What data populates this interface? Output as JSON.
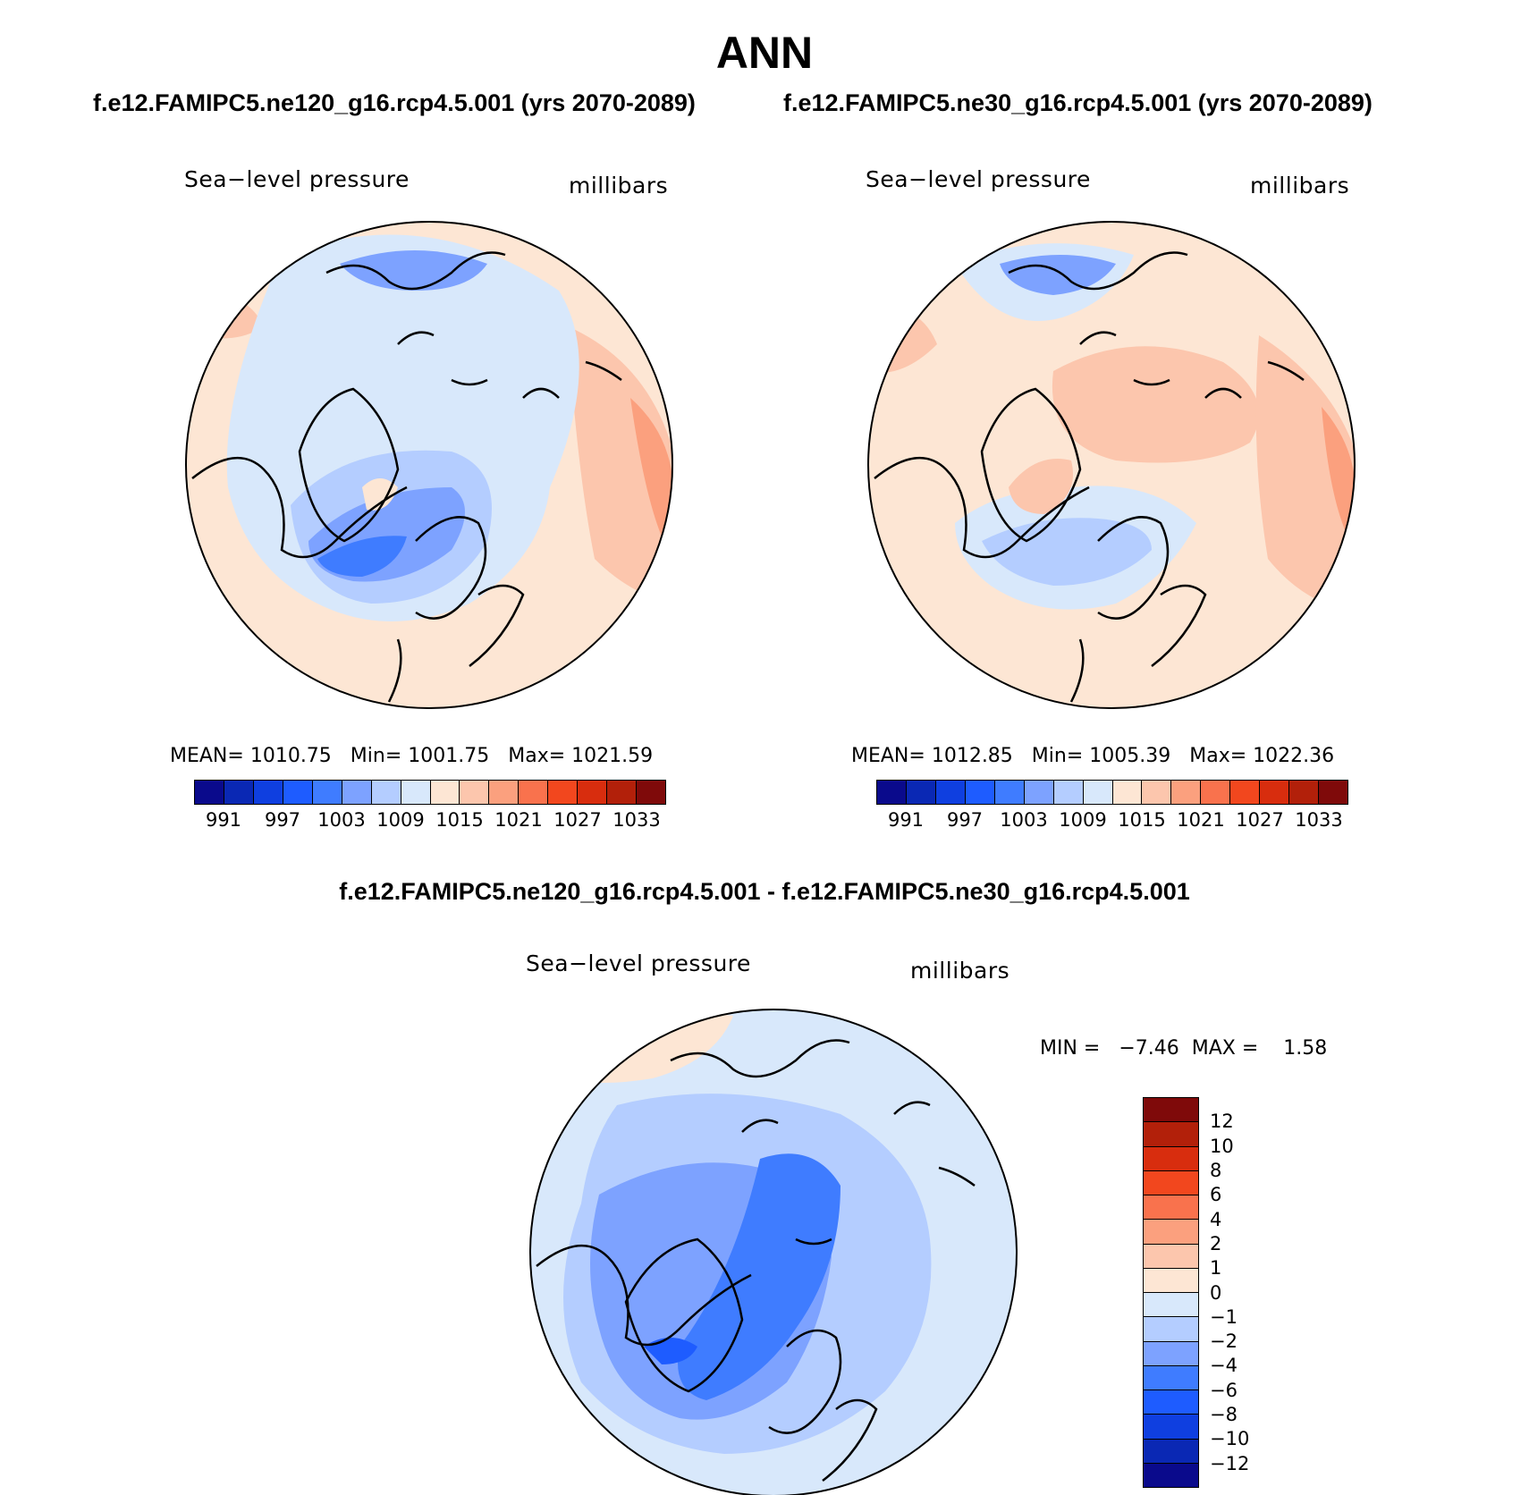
{
  "title": "ANN",
  "panel_left": {
    "case": "f.e12.FAMIPC5.ne120_g16.rcp4.5.001 (yrs 2070-2089)",
    "variable": "Sea−level pressure",
    "units": "millibars",
    "mean_label": "MEAN=",
    "mean": "1010.75",
    "min_label": "Min=",
    "min": "1001.75",
    "max_label": "Max=",
    "max": "1021.59"
  },
  "panel_right": {
    "case": "f.e12.FAMIPC5.ne30_g16.rcp4.5.001 (yrs 2070-2089)",
    "variable": "Sea−level pressure",
    "units": "millibars",
    "mean_label": "MEAN=",
    "mean": "1012.85",
    "min_label": "Min=",
    "min": "1005.39",
    "max_label": "Max=",
    "max": "1022.36"
  },
  "panel_diff": {
    "case": "f.e12.FAMIPC5.ne120_g16.rcp4.5.001 - f.e12.FAMIPC5.ne30_g16.rcp4.5.001",
    "variable": "Sea−level pressure",
    "units": "millibars",
    "min_label": "MIN =",
    "min": "−7.46",
    "max_label": "MAX =",
    "max": "1.58"
  },
  "colorbar_abs": {
    "ticks": [
      "991",
      "997",
      "1003",
      "1009",
      "1015",
      "1021",
      "1027",
      "1033"
    ],
    "colors": [
      "#0a0a8c",
      "#0a28b4",
      "#0f3fe0",
      "#1e5cff",
      "#3f7cff",
      "#7da2ff",
      "#b4cdff",
      "#d8e8fb",
      "#fde6d4",
      "#fcc6ad",
      "#fba07e",
      "#f9724d",
      "#f2471e",
      "#d82d0e",
      "#b2200a",
      "#7f0a0a"
    ]
  },
  "colorbar_diff": {
    "ticks": [
      "12",
      "10",
      "8",
      "6",
      "4",
      "2",
      "1",
      "0",
      "−1",
      "−2",
      "−4",
      "−6",
      "−8",
      "−10",
      "−12"
    ],
    "colors": [
      "#7f0a0a",
      "#b2200a",
      "#d82d0e",
      "#f2471e",
      "#f9724d",
      "#fba07e",
      "#fcc6ad",
      "#fde6d4",
      "#d8e8fb",
      "#b4cdff",
      "#7da2ff",
      "#3f7cff",
      "#1e5cff",
      "#0f3fe0",
      "#0a28b4",
      "#0a0a8c"
    ]
  }
}
